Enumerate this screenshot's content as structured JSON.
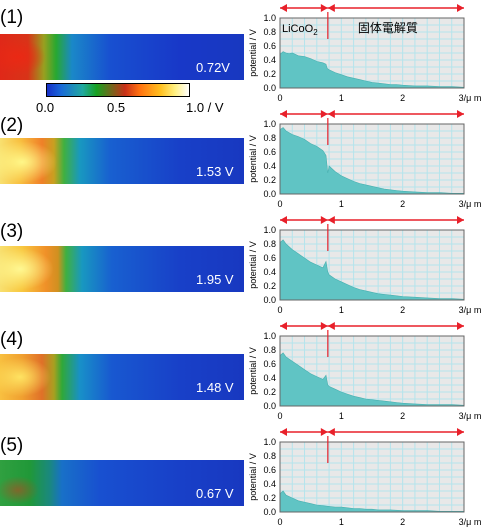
{
  "steps": [
    {
      "label": "(1)",
      "voltage": "0.72V"
    },
    {
      "label": "(2)",
      "voltage": "1.53 V"
    },
    {
      "label": "(3)",
      "voltage": "1.95 V"
    },
    {
      "label": "(4)",
      "voltage": "1.48 V"
    },
    {
      "label": "(5)",
      "voltage": "0.67 V"
    }
  ],
  "colorbar": {
    "ticks": [
      "0.0",
      "0.5",
      "1.0 / V"
    ],
    "colors": [
      "#1830c8",
      "#1a6ad8",
      "#20a8a0",
      "#18a020",
      "#c83018",
      "#ff7010",
      "#ffc020",
      "#fff080",
      "#ffffff"
    ]
  },
  "colors": {
    "fill": "#60c4c4",
    "grid": "#b4e4ec",
    "arrow": "#e8202a",
    "plot_bg": "#e8e8e8"
  },
  "chart_data": [
    {
      "type": "area",
      "ylabel": "potential / V",
      "ylim": [
        0,
        1
      ],
      "xlim": [
        0,
        3
      ],
      "xticks": [
        "0",
        "1",
        "2",
        "3/μ m"
      ],
      "yticks": [
        "0.0",
        "0.2",
        "0.4",
        "0.6",
        "0.8",
        "1.0"
      ],
      "region_labels": {
        "left_main": "LiCoO",
        "left_sub": "2",
        "right": "固体電解質"
      },
      "boundary": 0.78,
      "x": [
        0,
        0.05,
        0.1,
        0.15,
        0.2,
        0.3,
        0.4,
        0.5,
        0.6,
        0.7,
        0.75,
        0.77,
        0.8,
        0.9,
        1.0,
        1.1,
        1.2,
        1.3,
        1.4,
        1.5,
        1.6,
        1.7,
        1.8,
        1.9,
        2.0,
        2.2,
        2.4,
        2.6,
        2.8,
        3.0
      ],
      "y": [
        0.48,
        0.52,
        0.5,
        0.49,
        0.5,
        0.46,
        0.45,
        0.42,
        0.38,
        0.36,
        0.34,
        0.28,
        0.26,
        0.22,
        0.19,
        0.16,
        0.14,
        0.12,
        0.1,
        0.08,
        0.07,
        0.06,
        0.05,
        0.05,
        0.04,
        0.03,
        0.03,
        0.02,
        0.02,
        0.01
      ]
    },
    {
      "type": "area",
      "ylabel": "potential / V",
      "ylim": [
        0,
        1
      ],
      "xlim": [
        0,
        3
      ],
      "xticks": [
        "0",
        "1",
        "2",
        "3/μ m"
      ],
      "yticks": [
        "0.0",
        "0.2",
        "0.4",
        "0.6",
        "0.8",
        "1.0"
      ],
      "boundary": 0.78,
      "x": [
        0,
        0.05,
        0.1,
        0.2,
        0.3,
        0.4,
        0.5,
        0.6,
        0.7,
        0.75,
        0.78,
        0.8,
        0.9,
        1.0,
        1.1,
        1.2,
        1.3,
        1.4,
        1.5,
        1.6,
        1.7,
        1.8,
        1.9,
        2.0,
        2.2,
        2.4,
        2.6,
        2.8,
        3.0
      ],
      "y": [
        0.92,
        0.95,
        0.9,
        0.85,
        0.82,
        0.78,
        0.72,
        0.68,
        0.62,
        0.55,
        0.3,
        0.4,
        0.32,
        0.26,
        0.22,
        0.18,
        0.15,
        0.13,
        0.11,
        0.09,
        0.07,
        0.06,
        0.05,
        0.04,
        0.03,
        0.02,
        0.02,
        0.01,
        0.01
      ]
    },
    {
      "type": "area",
      "ylabel": "potential / V",
      "ylim": [
        0,
        1
      ],
      "xlim": [
        0,
        3
      ],
      "xticks": [
        "0",
        "1",
        "2",
        "3/μ m"
      ],
      "yticks": [
        "0.0",
        "0.2",
        "0.4",
        "0.6",
        "0.8",
        "1.0"
      ],
      "boundary": 0.78,
      "x": [
        0,
        0.05,
        0.1,
        0.2,
        0.3,
        0.4,
        0.5,
        0.6,
        0.7,
        0.75,
        0.78,
        0.8,
        0.9,
        1.0,
        1.1,
        1.2,
        1.3,
        1.4,
        1.5,
        1.6,
        1.7,
        1.8,
        1.9,
        2.0,
        2.2,
        2.4,
        2.6,
        2.8,
        3.0
      ],
      "y": [
        0.82,
        0.86,
        0.8,
        0.72,
        0.66,
        0.6,
        0.54,
        0.5,
        0.46,
        0.55,
        0.4,
        0.36,
        0.3,
        0.26,
        0.22,
        0.18,
        0.15,
        0.13,
        0.11,
        0.09,
        0.08,
        0.07,
        0.06,
        0.05,
        0.04,
        0.03,
        0.02,
        0.02,
        0.01
      ]
    },
    {
      "type": "area",
      "ylabel": "potential / V",
      "ylim": [
        0,
        1
      ],
      "xlim": [
        0,
        3
      ],
      "xticks": [
        "0",
        "1",
        "2",
        "3/μ m"
      ],
      "yticks": [
        "0.0",
        "0.2",
        "0.4",
        "0.6",
        "0.8",
        "1.0"
      ],
      "boundary": 0.78,
      "x": [
        0,
        0.05,
        0.1,
        0.2,
        0.3,
        0.4,
        0.5,
        0.6,
        0.7,
        0.75,
        0.78,
        0.8,
        0.9,
        1.0,
        1.1,
        1.2,
        1.3,
        1.4,
        1.5,
        1.6,
        1.7,
        1.8,
        1.9,
        2.0,
        2.2,
        2.4,
        2.6,
        2.8,
        3.0
      ],
      "y": [
        0.72,
        0.76,
        0.7,
        0.64,
        0.58,
        0.52,
        0.46,
        0.42,
        0.38,
        0.44,
        0.3,
        0.28,
        0.24,
        0.2,
        0.17,
        0.14,
        0.12,
        0.1,
        0.09,
        0.08,
        0.07,
        0.06,
        0.05,
        0.04,
        0.03,
        0.02,
        0.02,
        0.02,
        0.01
      ]
    },
    {
      "type": "area",
      "ylabel": "potential / V",
      "ylim": [
        0,
        1
      ],
      "xlim": [
        0,
        3
      ],
      "xticks": [
        "0",
        "1",
        "2",
        "3/μ m"
      ],
      "yticks": [
        "0.0",
        "0.2",
        "0.4",
        "0.6",
        "0.8",
        "1.0"
      ],
      "boundary": 0.78,
      "x": [
        0,
        0.05,
        0.1,
        0.2,
        0.3,
        0.4,
        0.5,
        0.6,
        0.7,
        0.8,
        0.9,
        1.0,
        1.1,
        1.2,
        1.3,
        1.4,
        1.5,
        1.6,
        1.8,
        2.0,
        2.2,
        2.4,
        2.6,
        2.8,
        3.0
      ],
      "y": [
        0.26,
        0.3,
        0.24,
        0.2,
        0.16,
        0.14,
        0.12,
        0.1,
        0.09,
        0.08,
        0.07,
        0.07,
        0.06,
        0.05,
        0.05,
        0.04,
        0.04,
        0.03,
        0.03,
        0.02,
        0.02,
        0.02,
        0.01,
        0.01,
        0.01
      ]
    }
  ]
}
